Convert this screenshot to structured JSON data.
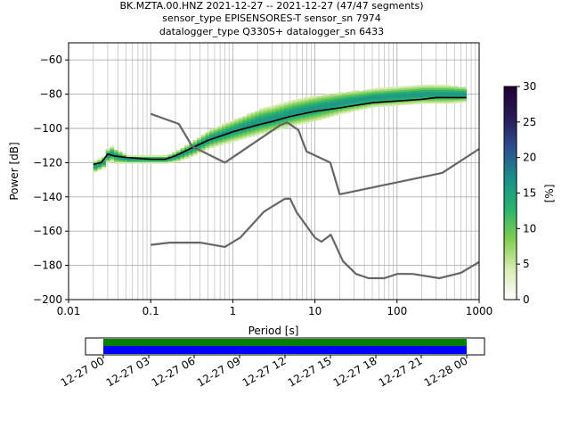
{
  "chart_data": {
    "type": "heatmap",
    "title": "BK.MZTA.00.HNZ   2021-12-27 -- 2021-12-27  (47/47 segments)",
    "subtitle_lines": [
      "sensor_type EPISENSORES-T sensor_sn 7974",
      "datalogger_type Q330S+ datalogger_sn 6433"
    ],
    "xlabel": "Period [s]",
    "ylabel": "Power [dB]",
    "x_scale": "log",
    "xlim": [
      0.01,
      1000
    ],
    "ylim": [
      -200,
      -50
    ],
    "grid": true,
    "x_ticks": [
      {
        "value": 0.01,
        "label": "0.01"
      },
      {
        "value": 0.1,
        "label": "0.1"
      },
      {
        "value": 1,
        "label": "1"
      },
      {
        "value": 10,
        "label": "10"
      },
      {
        "value": 100,
        "label": "100"
      },
      {
        "value": 1000,
        "label": "1000"
      }
    ],
    "y_ticks": [
      {
        "value": -60,
        "label": "−60"
      },
      {
        "value": -80,
        "label": "−80"
      },
      {
        "value": -100,
        "label": "−100"
      },
      {
        "value": -120,
        "label": "−120"
      },
      {
        "value": -140,
        "label": "−140"
      },
      {
        "value": -160,
        "label": "−160"
      },
      {
        "value": -180,
        "label": "−180"
      },
      {
        "value": -200,
        "label": "−200"
      }
    ],
    "colorbar": {
      "label": "[%]",
      "min": 0,
      "max": 30,
      "ticks": [
        {
          "value": 0,
          "label": "0"
        },
        {
          "value": 5,
          "label": "5"
        },
        {
          "value": 10,
          "label": "10"
        },
        {
          "value": 15,
          "label": "15"
        },
        {
          "value": 20,
          "label": "20"
        },
        {
          "value": 25,
          "label": "25"
        },
        {
          "value": 30,
          "label": "30"
        }
      ],
      "colors": [
        "#ffffff",
        "#d9ecb3",
        "#7fcd4e",
        "#27b36f",
        "#1c8e8b",
        "#2c4d8f",
        "#2a1a55",
        "#1f0033"
      ]
    },
    "density_band": {
      "period": [
        0.02,
        0.025,
        0.03,
        0.035,
        0.05,
        0.1,
        0.15,
        0.2,
        0.3,
        0.5,
        1,
        2,
        3,
        5,
        10,
        20,
        50,
        100,
        200,
        400,
        700
      ],
      "center_db": [
        -122,
        -120,
        -114,
        -116,
        -118,
        -118,
        -118,
        -116,
        -112,
        -106,
        -101,
        -96,
        -94,
        -91,
        -88,
        -85,
        -82,
        -81,
        -80,
        -80,
        -80
      ],
      "spread_db": [
        3,
        3,
        4,
        4,
        2,
        2,
        2,
        3,
        4,
        5,
        6,
        7,
        7,
        7,
        7,
        6,
        5,
        5,
        5,
        5,
        4
      ]
    },
    "series": [
      {
        "role": "mean",
        "color": "#000000",
        "x": [
          0.02,
          0.025,
          0.03,
          0.035,
          0.05,
          0.1,
          0.15,
          0.2,
          0.3,
          0.5,
          1,
          2,
          3,
          5,
          10,
          20,
          50,
          100,
          200,
          300,
          400,
          700
        ],
        "y": [
          -121,
          -120,
          -115,
          -116,
          -117,
          -118,
          -118,
          -116,
          -112,
          -107,
          -102,
          -98,
          -96,
          -93,
          -90,
          -88,
          -85,
          -84,
          -83,
          -82,
          -82,
          -82
        ]
      },
      {
        "role": "nhnm",
        "color": "#666666",
        "x": [
          0.1,
          0.22,
          0.32,
          0.8,
          3.8,
          4.6,
          6.3,
          7.9,
          15.4,
          20,
          354.8,
          1000
        ],
        "y": [
          -91.5,
          -97.4,
          -110.5,
          -120,
          -98,
          -96.5,
          -101,
          -113.5,
          -120,
          -138.5,
          -126,
          -112
        ]
      },
      {
        "role": "nlnm",
        "color": "#666666",
        "x": [
          0.1,
          0.17,
          0.4,
          0.8,
          1.24,
          2.4,
          4.3,
          5,
          6,
          10,
          12,
          15.6,
          21.9,
          31.6,
          45,
          70,
          101,
          154,
          328,
          600,
          1000
        ],
        "y": [
          -168,
          -166.7,
          -166.7,
          -169.2,
          -163.7,
          -148.6,
          -141.1,
          -141.1,
          -149,
          -163.8,
          -166.2,
          -162.1,
          -177.5,
          -185,
          -187.5,
          -187.5,
          -185,
          -185,
          -187.5,
          -184.4,
          -178
        ]
      }
    ],
    "timeline": {
      "coverage_colors": [
        "#008000",
        "#0000ff"
      ],
      "tick_labels": [
        "12-27 00",
        "12-27 03",
        "12-27 06",
        "12-27 09",
        "12-27 12",
        "12-27 15",
        "12-27 18",
        "12-27 21",
        "12-28 00"
      ],
      "coverage_start": 0,
      "coverage_end": 1
    }
  }
}
